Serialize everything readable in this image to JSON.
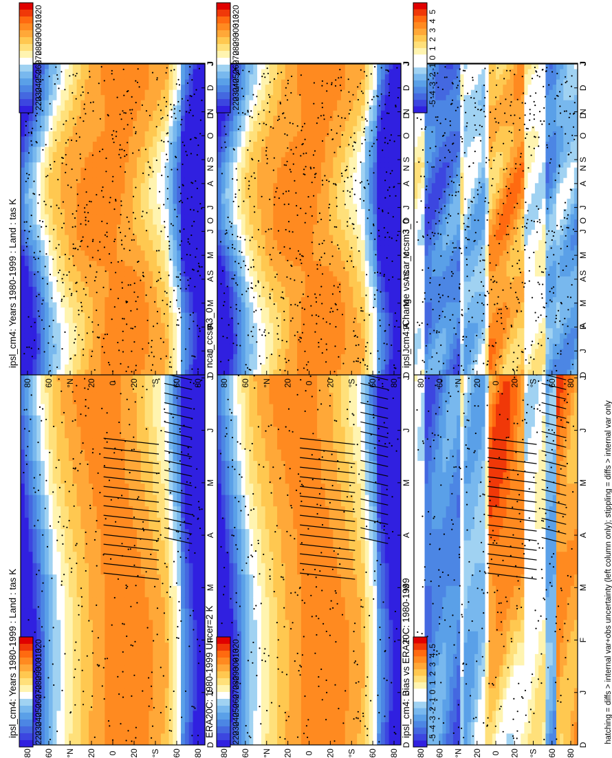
{
  "figure": {
    "footnote": "hatching = diffs > internal var+obs uncertainty (left column only); stippling = diffs > internal var only"
  },
  "colors": {
    "temperature_scale": [
      "#3020e0",
      "#3c46e0",
      "#4468e0",
      "#4c86e4",
      "#5aa0e8",
      "#78b8ee",
      "#a0d2f2",
      "#ffffff",
      "#fff4b0",
      "#ffe07a",
      "#ffc850",
      "#ffa838",
      "#ff8a20",
      "#ff6a10",
      "#f03808",
      "#e00000"
    ],
    "diff_scale": [
      "#3020e0",
      "#3c46e0",
      "#4468e0",
      "#4c86e4",
      "#5aa0e8",
      "#78b8ee",
      "#a0d2f2",
      "#ffffff",
      "#ffffff",
      "#fff4b0",
      "#ffe07a",
      "#ffc850",
      "#ffa838",
      "#ff8a20",
      "#ff6a10",
      "#f03808",
      "#e00000"
    ],
    "axis": "#000000",
    "background": "#ffffff"
  },
  "chart_data": [
    {
      "type": "heatmap",
      "panel": "top-left",
      "var": "abs",
      "title": "ipsl_cm4: Years 1980-1999 : Land : tas K",
      "xlabel": "",
      "ylabel": "",
      "x_ticks": [
        "D",
        "J",
        "F",
        "M",
        "A",
        "M",
        "J",
        "J",
        "A",
        "S",
        "O",
        "N",
        "D",
        "J"
      ],
      "y_ticks": [
        "80",
        "60",
        "°N",
        "20",
        "0",
        "20",
        "°S",
        "60",
        "80"
      ],
      "ylim": [
        -90,
        90
      ],
      "colorbar_ticks": [
        "320",
        "310",
        "300",
        "290",
        "280",
        "270",
        "260",
        "250",
        "240",
        "230",
        "220"
      ],
      "colorbar_range": [
        215,
        325
      ],
      "stipple": true,
      "hatch": true
    },
    {
      "type": "heatmap",
      "panel": "top-right",
      "var": "abs",
      "title": "ipsl_cm4: Years 1980-1999 : Land : tas K",
      "xlabel": "",
      "ylabel": "",
      "x_ticks": [
        "D",
        "J",
        "F",
        "M",
        "A",
        "M",
        "J",
        "J",
        "A",
        "S",
        "O",
        "N",
        "D",
        "J"
      ],
      "y_ticks": [
        "80",
        "60",
        "°N",
        "20",
        "0",
        "20",
        "°S",
        "60",
        "80"
      ],
      "ylim": [
        -90,
        90
      ],
      "colorbar_ticks": [
        "320",
        "310",
        "300",
        "290",
        "280",
        "270",
        "260",
        "250",
        "240",
        "230",
        "220"
      ],
      "colorbar_range": [
        215,
        325
      ],
      "stipple": true,
      "hatch": false
    },
    {
      "type": "heatmap",
      "panel": "middle-left",
      "var": "abs",
      "title": "ERA20C: 1980-1999 Uncer=2 K",
      "xlabel": "",
      "ylabel": "",
      "x_ticks": [
        "D",
        "J",
        "F",
        "M",
        "A",
        "M",
        "J",
        "J",
        "A",
        "S",
        "O",
        "N",
        "D",
        "J"
      ],
      "y_ticks": [
        "80",
        "60",
        "°N",
        "20",
        "0",
        "20",
        "°S",
        "60",
        "80"
      ],
      "ylim": [
        -90,
        90
      ],
      "colorbar_ticks": [
        "320",
        "310",
        "300",
        "290",
        "280",
        "270",
        "260",
        "250",
        "240",
        "230",
        "220"
      ],
      "colorbar_range": [
        215,
        325
      ],
      "stipple": true,
      "hatch": true
    },
    {
      "type": "heatmap",
      "panel": "middle-right",
      "var": "abs",
      "title": "ncar_ccsm3_0",
      "xlabel": "",
      "ylabel": "",
      "x_ticks": [
        "D",
        "J",
        "F",
        "M",
        "A",
        "M",
        "J",
        "J",
        "A",
        "S",
        "O",
        "N",
        "D",
        "J"
      ],
      "y_ticks": [
        "80",
        "60",
        "°N",
        "20",
        "0",
        "20",
        "°S",
        "60",
        "80"
      ],
      "ylim": [
        -90,
        90
      ],
      "colorbar_ticks": [
        "320",
        "310",
        "300",
        "290",
        "280",
        "270",
        "260",
        "250",
        "240",
        "230",
        "220"
      ],
      "colorbar_range": [
        215,
        325
      ],
      "stipple": true,
      "hatch": false
    },
    {
      "type": "heatmap",
      "panel": "bottom-left",
      "var": "bias",
      "title": "ipsl_cm4: Bias vs ERA20C: 1980-1999",
      "xlabel": "",
      "ylabel": "",
      "x_ticks": [
        "D",
        "J",
        "F",
        "M",
        "A",
        "M",
        "J",
        "J",
        "A",
        "S",
        "O",
        "N",
        "D",
        "J"
      ],
      "y_ticks": [
        "80",
        "60",
        "°N",
        "20",
        "0",
        "20",
        "°S",
        "60",
        "80"
      ],
      "ylim": [
        -90,
        90
      ],
      "colorbar_ticks": [
        "5",
        "4",
        "3",
        "2",
        "1",
        "0",
        "-1",
        "-2",
        "-3",
        "-4",
        "-5"
      ],
      "colorbar_range": [
        -5.5,
        5.5
      ],
      "stipple": true,
      "hatch": true
    },
    {
      "type": "heatmap",
      "panel": "bottom-right",
      "var": "change",
      "title": "ipsl_cm4: Change vs ncar_ccsm3_0",
      "xlabel": "",
      "ylabel": "",
      "x_ticks": [
        "D",
        "J",
        "F",
        "M",
        "A",
        "M",
        "J",
        "J",
        "A",
        "S",
        "O",
        "N",
        "D",
        "J"
      ],
      "y_ticks": [
        "80",
        "60",
        "°N",
        "20",
        "0",
        "20",
        "°S",
        "60",
        "80"
      ],
      "ylim": [
        -90,
        90
      ],
      "colorbar_ticks": [
        "5",
        "4",
        "3",
        "2",
        "1",
        "0",
        "-1",
        "-2",
        "-3",
        "-4",
        "-5"
      ],
      "colorbar_range": [
        -5.5,
        5.5
      ],
      "stipple": true,
      "hatch": false
    }
  ]
}
